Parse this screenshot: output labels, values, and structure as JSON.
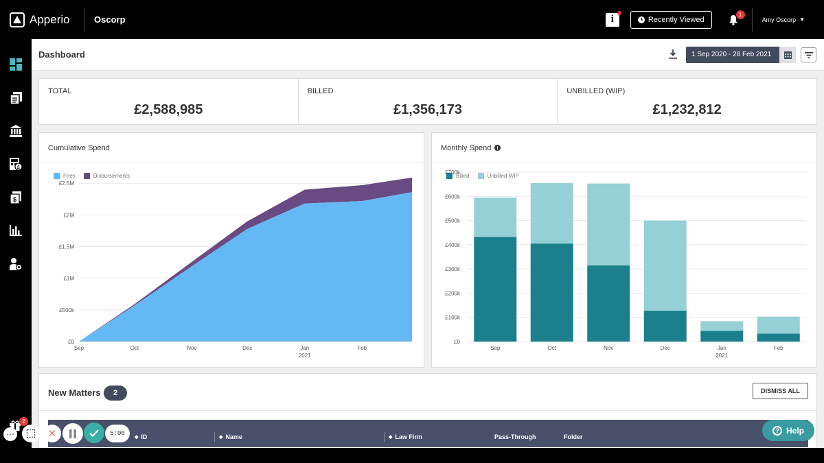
{
  "app": {
    "brand": "Apperio",
    "client": "Oscorp"
  },
  "topbar": {
    "info_icon_label": "i",
    "recently_viewed": "Recently Viewed",
    "notification_count": "1",
    "user_name": "Amy Oscorp"
  },
  "sidebar": {
    "items": [
      {
        "icon": "dashboard-icon",
        "active": true
      },
      {
        "icon": "documents-icon"
      },
      {
        "icon": "bank-icon"
      },
      {
        "icon": "calculator-icon"
      },
      {
        "icon": "invoice-icon"
      },
      {
        "icon": "bar-chart-icon"
      },
      {
        "icon": "user-settings-icon"
      }
    ]
  },
  "header": {
    "title": "Dashboard",
    "date_range": "1 Sep 2020 - 28 Feb 2021"
  },
  "stats": [
    {
      "label": "TOTAL",
      "value": "£2,588,985"
    },
    {
      "label": "BILLED",
      "value": "£1,356,173"
    },
    {
      "label": "UNBILLED (WIP)",
      "value": "£1,232,812"
    }
  ],
  "colors": {
    "fees": "#64b9f5",
    "disbursements": "#6a4a83",
    "billed": "#1b7f8c",
    "unbilled": "#95d0d6",
    "accent": "#424a5e",
    "help": "#3a9ba0"
  },
  "chart_data": [
    {
      "type": "area",
      "title": "Cumulative Spend",
      "stacked": true,
      "legend": [
        "Fees",
        "Disbursements"
      ],
      "x": [
        "2020-09-01",
        "2020-10-01",
        "2020-11-01",
        "2020-12-01",
        "2021-01-01",
        "2021-02-01",
        "2021-02-28"
      ],
      "x_tick_labels": [
        "Sep",
        "Oct",
        "Nov",
        "Dec",
        "Jan",
        "Feb"
      ],
      "x_sublabel": "2021",
      "y_tick_labels": [
        "£0",
        "£500k",
        "£1M",
        "£1.5M",
        "£2M",
        "£2.5M"
      ],
      "ylim": [
        0,
        2600000
      ],
      "series": [
        {
          "name": "Fees",
          "values": [
            0,
            570000,
            1190000,
            1780000,
            2180000,
            2220000,
            2360000
          ]
        },
        {
          "name": "Disbursements",
          "values": [
            0,
            20000,
            70000,
            120000,
            220000,
            250000,
            230000
          ]
        }
      ]
    },
    {
      "type": "bar",
      "title": "Monthly Spend",
      "stacked": true,
      "legend": [
        "Billed",
        "Unbilled WIP"
      ],
      "categories": [
        "Sep",
        "Oct",
        "Nov",
        "Dec",
        "Jan",
        "Feb"
      ],
      "x_sublabel": "2021",
      "y_tick_labels": [
        "£0",
        "£100k",
        "£200k",
        "£300k",
        "£400k",
        "£500k",
        "£600k",
        "£700k"
      ],
      "ylim": [
        0,
        700000
      ],
      "series": [
        {
          "name": "Billed",
          "values": [
            432000,
            405000,
            315000,
            128000,
            44000,
            33000
          ]
        },
        {
          "name": "Unbilled WIP",
          "values": [
            163000,
            250000,
            338000,
            372000,
            40000,
            70000
          ]
        }
      ]
    }
  ],
  "new_matters": {
    "title": "New Matters",
    "count": "2",
    "dismiss_all": "DISMISS ALL",
    "columns": [
      "ID",
      "Name",
      "Law Firm",
      "Pass-Through",
      "Folder"
    ]
  },
  "recorder": {
    "gift_badge": "2",
    "timer": "5:00"
  },
  "help": {
    "label": "Help"
  }
}
